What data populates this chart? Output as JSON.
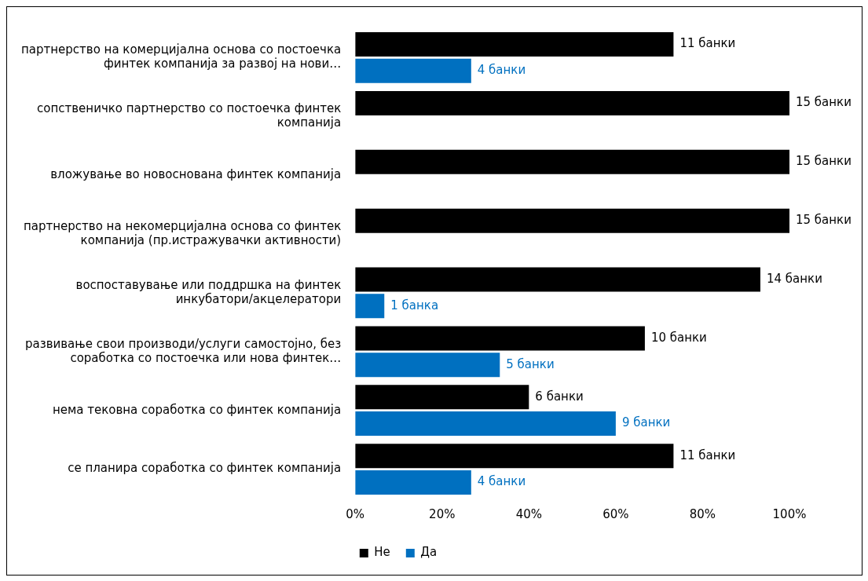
{
  "chart_data": {
    "type": "bar",
    "orientation": "horizontal",
    "categories": [
      "партнерство на комерцијална основа со постоечка финтек компанија за развој на нови…",
      "сопственичко партнерство со постоечка финтек компанија",
      "вложување во новоснована финтек компанија",
      "партнерство на некомерцијална основа со финтек компанија (пр.истражувачки активности)",
      "воспоставување или поддршка на финтек инкубатори/акцелератори",
      "развивање свои производи/услуги самостојно, без соработка со постоечка или нова финтек…",
      "нема тековна соработка со финтек компанија",
      "се планира соработка со финтек компанија"
    ],
    "series": [
      {
        "name": "Не",
        "color": "#000000",
        "values": [
          73.3,
          100,
          100,
          100,
          93.3,
          66.7,
          40,
          73.3
        ]
      },
      {
        "name": "Да",
        "color": "#0070c0",
        "values": [
          26.7,
          null,
          null,
          null,
          6.7,
          33.3,
          60,
          26.7
        ]
      }
    ],
    "annotations": [
      {
        "text": "11 банки",
        "x": 73.3,
        "y": "партнерство на комерцијална основа со постоечка финтек компанија за развој на нови…"
      },
      {
        "text": "4 банки",
        "x": 26.7,
        "y": "партнерство на комерцијална основа со постоечка финтек компанија за развој на нови…"
      },
      {
        "text": "15 банки",
        "x": 100,
        "y": "сопственичко партнерство со постоечка финтек компанија"
      },
      {
        "text": "15 банки",
        "x": 100,
        "y": "вложување во новоснована финтек компанија"
      },
      {
        "text": "15 банки",
        "x": 100,
        "y": "партнерство на некомерцијална основа со финтек компанија (пр.истражувачки активности)"
      },
      {
        "text": "14 банки",
        "x": 93.3,
        "y": "воспоставување или поддршка на финтек инкубатори/акцелератори"
      },
      {
        "text": "1 банка",
        "x": 6.7,
        "y": "воспоставување или поддршка на финтек инкубатори/акцелератори"
      },
      {
        "text": "10 банки",
        "x": 66.7,
        "y": "развивање свои производи/услуги самостојно, без соработка со постоечка или нова финтек…"
      },
      {
        "text": "5 банки",
        "x": 33.3,
        "y": "развивање свои производи/услуги самостојно, без соработка со постоечка или нова финтек…"
      },
      {
        "text": "6 банки",
        "x": 40,
        "y": "нема тековна соработка со финтек компанија"
      },
      {
        "text": "9 банки",
        "x": 60,
        "y": "нема тековна соработка со финтек компанија"
      },
      {
        "text": "11 банки",
        "x": 73.3,
        "y": "се планира соработка со финтек компанија"
      },
      {
        "text": "4 банки",
        "x": 26.7,
        "y": "се планира соработка со финтек компанија"
      }
    ],
    "xlim": [
      0,
      100
    ],
    "xticks": [
      {
        "value": 0,
        "label": "0%"
      },
      {
        "value": 20,
        "label": "20%"
      },
      {
        "value": 40,
        "label": "40%"
      },
      {
        "value": 60,
        "label": "60%"
      },
      {
        "value": 80,
        "label": "80%"
      },
      {
        "value": 100,
        "label": "100%"
      }
    ],
    "grid": false,
    "legend": "bottom"
  }
}
